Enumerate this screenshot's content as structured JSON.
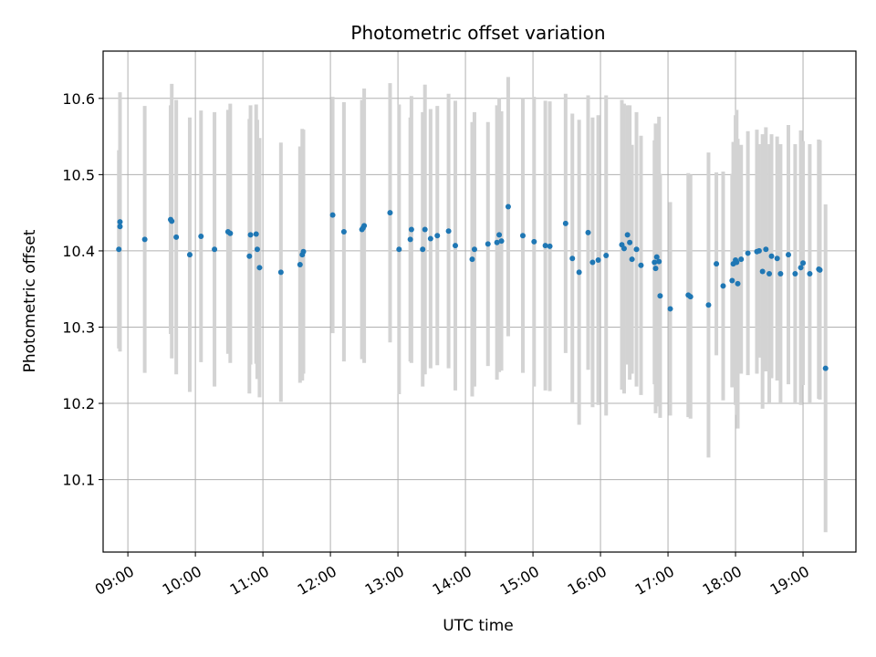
{
  "chart_data": {
    "type": "scatter",
    "title": "Photometric offset variation",
    "xlabel": "UTC time",
    "ylabel": "Photometric offset",
    "x_tick_labels": [
      "09:00",
      "10:00",
      "11:00",
      "12:00",
      "13:00",
      "14:00",
      "15:00",
      "16:00",
      "17:00",
      "18:00",
      "19:00"
    ],
    "y_tick_labels": [
      "10.1",
      "10.2",
      "10.3",
      "10.4",
      "10.5",
      "10.6"
    ],
    "xlim": [
      "08:38",
      "19:47"
    ],
    "ylim": [
      10.005,
      10.662
    ],
    "grid": true,
    "colors": {
      "points": "#1f77b4",
      "errorbars": "#d3d3d3",
      "grid": "#b0b0b0"
    },
    "series": [
      {
        "x": [
          "08:52",
          "08:53",
          "08:53",
          "09:15",
          "09:38",
          "09:39",
          "09:43",
          "09:55",
          "10:05",
          "10:17",
          "10:29",
          "10:31",
          "10:48",
          "10:49",
          "10:54",
          "10:55",
          "10:57",
          "11:16",
          "11:33",
          "11:35",
          "11:36",
          "12:02",
          "12:12",
          "12:28",
          "12:29",
          "12:30",
          "12:53",
          "13:01",
          "13:11",
          "13:12",
          "13:22",
          "13:24",
          "13:29",
          "13:35",
          "13:45",
          "13:51",
          "14:06",
          "14:08",
          "14:20",
          "14:28",
          "14:30",
          "14:32",
          "14:38",
          "14:51",
          "15:01",
          "15:11",
          "15:15",
          "15:29",
          "15:35",
          "15:41",
          "15:49",
          "15:53",
          "15:58",
          "16:05",
          "16:19",
          "16:21",
          "16:24",
          "16:26",
          "16:28",
          "16:32",
          "16:36",
          "16:48",
          "16:49",
          "16:50",
          "16:52",
          "16:53",
          "17:02",
          "17:18",
          "17:20",
          "17:36",
          "17:43",
          "17:49",
          "17:57",
          "17:58",
          "18:00",
          "18:01",
          "18:02",
          "18:05",
          "18:11",
          "18:19",
          "18:21",
          "18:24",
          "18:27",
          "18:30",
          "18:32",
          "18:37",
          "18:40",
          "18:47",
          "18:53",
          "18:58",
          "19:00",
          "19:06",
          "19:14",
          "19:15",
          "19:20"
        ],
        "y": [
          10.402,
          10.438,
          10.432,
          10.415,
          10.441,
          10.439,
          10.418,
          10.395,
          10.419,
          10.402,
          10.425,
          10.423,
          10.393,
          10.421,
          10.422,
          10.402,
          10.378,
          10.372,
          10.382,
          10.395,
          10.399,
          10.447,
          10.425,
          10.428,
          10.43,
          10.433,
          10.45,
          10.402,
          10.415,
          10.428,
          10.402,
          10.428,
          10.416,
          10.42,
          10.426,
          10.407,
          10.389,
          10.402,
          10.409,
          10.411,
          10.421,
          10.413,
          10.458,
          10.42,
          10.412,
          10.407,
          10.406,
          10.436,
          10.39,
          10.372,
          10.424,
          10.385,
          10.388,
          10.394,
          10.408,
          10.403,
          10.421,
          10.411,
          10.389,
          10.402,
          10.381,
          10.385,
          10.377,
          10.392,
          10.386,
          10.341,
          10.324,
          10.342,
          10.34,
          10.329,
          10.383,
          10.354,
          10.361,
          10.383,
          10.388,
          10.385,
          10.357,
          10.389,
          10.397,
          10.399,
          10.4,
          10.373,
          10.402,
          10.37,
          10.393,
          10.39,
          10.37,
          10.395,
          10.37,
          10.378,
          10.384,
          10.37,
          10.376,
          10.375,
          10.246
        ],
        "err": [
          0.13,
          0.17,
          0.15,
          0.175,
          0.15,
          0.18,
          0.18,
          0.18,
          0.165,
          0.18,
          0.16,
          0.17,
          0.18,
          0.17,
          0.17,
          0.17,
          0.17,
          0.17,
          0.155,
          0.165,
          0.16,
          0.155,
          0.17,
          0.17,
          0.16,
          0.18,
          0.17,
          0.19,
          0.16,
          0.175,
          0.18,
          0.19,
          0.17,
          0.17,
          0.18,
          0.19,
          0.18,
          0.18,
          0.16,
          0.18,
          0.18,
          0.17,
          0.17,
          0.18,
          0.19,
          0.19,
          0.19,
          0.17,
          0.19,
          0.2,
          0.18,
          0.19,
          0.19,
          0.21,
          0.19,
          0.19,
          0.17,
          0.18,
          0.15,
          0.18,
          0.17,
          0.16,
          0.19,
          0.15,
          0.19,
          0.16,
          0.14,
          0.16,
          0.16,
          0.2,
          0.12,
          0.15,
          0.14,
          0.16,
          0.19,
          0.2,
          0.19,
          0.15,
          0.16,
          0.16,
          0.14,
          0.18,
          0.16,
          0.17,
          0.16,
          0.16,
          0.17,
          0.17,
          0.17,
          0.18,
          0.16,
          0.17,
          0.17,
          0.17,
          0.215
        ]
      }
    ]
  }
}
